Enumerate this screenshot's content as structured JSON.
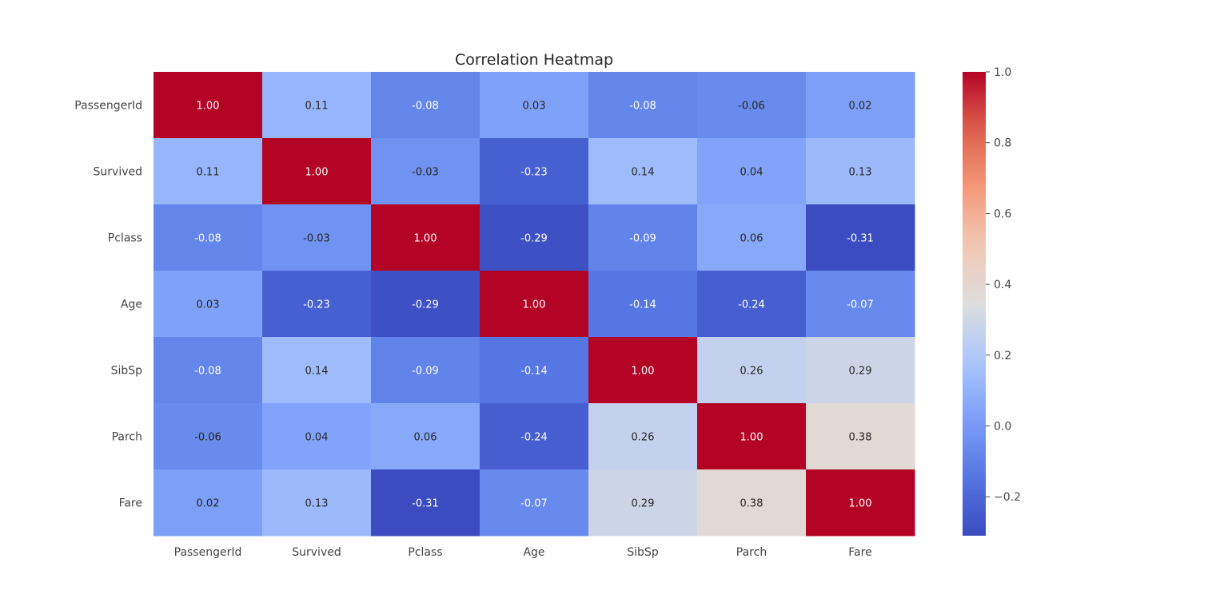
{
  "chart_data": {
    "type": "heatmap",
    "title": "Correlation Heatmap",
    "xlabel": "",
    "ylabel": "",
    "x_categories": [
      "PassengerId",
      "Survived",
      "Pclass",
      "Age",
      "SibSp",
      "Parch",
      "Fare"
    ],
    "y_categories": [
      "PassengerId",
      "Survived",
      "Pclass",
      "Age",
      "SibSp",
      "Parch",
      "Fare"
    ],
    "values": [
      [
        1.0,
        0.11,
        -0.08,
        0.03,
        -0.08,
        -0.06,
        0.02
      ],
      [
        0.11,
        1.0,
        -0.03,
        -0.23,
        0.14,
        0.04,
        0.13
      ],
      [
        -0.08,
        -0.03,
        1.0,
        -0.29,
        -0.09,
        0.06,
        -0.31
      ],
      [
        0.03,
        -0.23,
        -0.29,
        1.0,
        -0.14,
        -0.24,
        -0.07
      ],
      [
        -0.08,
        0.14,
        -0.09,
        -0.14,
        1.0,
        0.26,
        0.29
      ],
      [
        -0.06,
        0.04,
        0.06,
        -0.24,
        0.26,
        1.0,
        0.38
      ],
      [
        0.02,
        0.13,
        -0.31,
        -0.07,
        0.29,
        0.38,
        1.0
      ]
    ],
    "annotation_format": "0.00",
    "colormap": "coolwarm",
    "colorbar": {
      "vmin": -0.31,
      "vmax": 1.0,
      "ticks": [
        -0.2,
        0.0,
        0.2,
        0.4,
        0.6,
        0.8,
        1.0
      ],
      "tick_labels": [
        "−0.2",
        "0.0",
        "0.2",
        "0.4",
        "0.6",
        "0.8",
        "1.0"
      ]
    },
    "colors": {
      "low": "#3b4cc0",
      "mid": "#dddddd",
      "high": "#b40426",
      "text": "#444444",
      "title": "#262626"
    },
    "grid": false
  }
}
